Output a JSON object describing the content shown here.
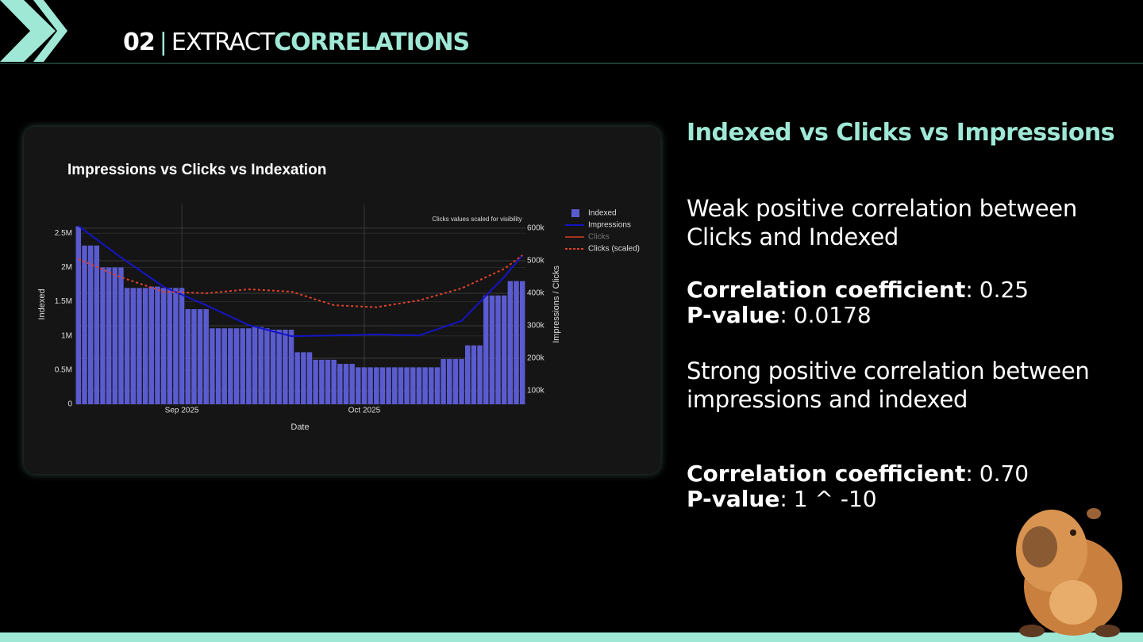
{
  "header": {
    "number": "02",
    "separator": "|",
    "title_plain": "EXTRACT",
    "title_accent": "CORRELATIONS"
  },
  "chart_data": {
    "type": "combo",
    "title": "Impressions vs Clicks vs Indexation",
    "annotation": "Clicks values scaled for visibility",
    "x_label": "Date",
    "y_label": "Indexed",
    "y2_label": "Impressions / Clicks",
    "categories": [
      null,
      null,
      null,
      null,
      null,
      null,
      null,
      null,
      null,
      null,
      null,
      null,
      null,
      null,
      null,
      null,
      null,
      null,
      null,
      null,
      null,
      null,
      null,
      null,
      null,
      null,
      null,
      null,
      null,
      null,
      null,
      null,
      null,
      null,
      null,
      null,
      null,
      null,
      null,
      null,
      null,
      null,
      null,
      null,
      null,
      null,
      null,
      null,
      null,
      null,
      null,
      null,
      null,
      null,
      null,
      null,
      null,
      null,
      null,
      null,
      null,
      null,
      null,
      null,
      null,
      null,
      null,
      null,
      null,
      null,
      null,
      null,
      null,
      null
    ],
    "xticks": [
      {
        "value": 17,
        "label": "Sep 2025"
      },
      {
        "value": 47,
        "label": "Oct 2025"
      }
    ],
    "ylim": [
      0,
      2920000
    ],
    "yticks": [
      0,
      {
        "value": 500000,
        "label": "0.5M"
      },
      {
        "value": 1000000,
        "label": "1M"
      },
      {
        "value": 1500000,
        "label": "1.5M"
      },
      {
        "value": 2000000,
        "label": "2M"
      },
      {
        "value": 2500000,
        "label": "2.5M"
      }
    ],
    "y2lim": [
      58500,
      673000
    ],
    "y2ticks": [
      {
        "value": 100000,
        "label": "100k"
      },
      {
        "value": 200000,
        "label": "200k"
      },
      {
        "value": 300000,
        "label": "300k"
      },
      {
        "value": 400000,
        "label": "400k"
      },
      {
        "value": 500000,
        "label": "500k"
      },
      {
        "value": 600000,
        "label": "600k"
      }
    ],
    "grid": true,
    "legend": "right",
    "series": [
      {
        "name": "Indexed",
        "type": "bar",
        "color": "#5b5bd0",
        "values": [
          2600000,
          2320000,
          2320000,
          2320000,
          2000000,
          2000000,
          2000000,
          2000000,
          1700000,
          1700000,
          1700000,
          1700000,
          1720000,
          1720000,
          1700000,
          1700000,
          1700000,
          1700000,
          1390000,
          1390000,
          1390000,
          1390000,
          1110000,
          1110000,
          1110000,
          1110000,
          1110000,
          1110000,
          1110000,
          1130000,
          1130000,
          1110000,
          1090000,
          1090000,
          1090000,
          1090000,
          760000,
          760000,
          760000,
          650000,
          650000,
          650000,
          650000,
          590000,
          590000,
          590000,
          540000,
          540000,
          540000,
          540000,
          540000,
          540000,
          540000,
          540000,
          540000,
          540000,
          540000,
          540000,
          540000,
          540000,
          660000,
          660000,
          660000,
          660000,
          860000,
          860000,
          860000,
          1590000,
          1590000,
          1590000,
          1590000,
          1800000,
          1800000,
          1800000
        ]
      },
      {
        "name": "Impressions",
        "type": "line",
        "axis": "y2",
        "color": "#1414c8",
        "x": [
          0,
          7,
          14,
          21,
          28,
          35,
          42,
          49,
          56,
          63,
          70,
          73
        ],
        "values": [
          607000,
          510000,
          420000,
          363000,
          302000,
          268000,
          270000,
          273000,
          270000,
          315000,
          450000,
          517000
        ]
      },
      {
        "name": "Clicks",
        "type": "line",
        "axis": "y2",
        "color": "#a8321e",
        "visible": false
      },
      {
        "name": "Clicks (scaled)",
        "type": "line",
        "axis": "y2",
        "dash": true,
        "color": "#e0402a",
        "x": [
          0,
          7,
          14,
          21,
          28,
          35,
          42,
          49,
          56,
          63,
          70,
          73
        ],
        "values": [
          505000,
          449000,
          405000,
          400000,
          412000,
          405000,
          363000,
          357000,
          378000,
          415000,
          475000,
          517000
        ]
      }
    ]
  },
  "panel": {
    "heading": "Indexed vs Clicks vs Impressions",
    "findings": [
      {
        "text": "Weak positive correlation between Clicks and Indexed",
        "stats": [
          {
            "label": "Correlation coefficient",
            "separator": ":",
            "value": "0.25"
          },
          {
            "label": "P-value",
            "separator": ":",
            "value": "0.0178"
          }
        ]
      },
      {
        "text": "Strong positive correlation between impressions and indexed",
        "stats": [
          {
            "label": "Correlation coefficient",
            "separator": ":",
            "value": "0.70"
          },
          {
            "label": "P-value",
            "separator": ":",
            "value": "1 ^ -10"
          }
        ]
      }
    ]
  }
}
